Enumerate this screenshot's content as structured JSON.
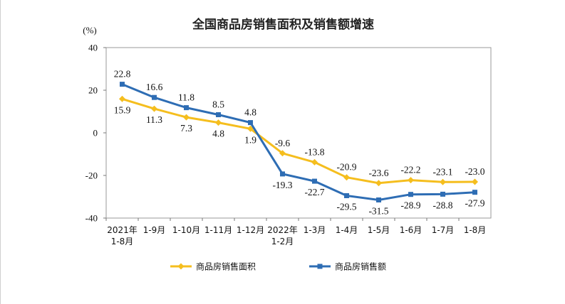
{
  "chart_data": {
    "type": "line",
    "title": "全国商品房销售面积及销售额增速",
    "ylabel": "(%)",
    "xlabel": "",
    "ylim": [
      -40,
      40
    ],
    "yticks": [
      40,
      20,
      0,
      -20,
      -40
    ],
    "categories": [
      "2021年\n1-8月",
      "1-9月",
      "1-10月",
      "1-11月",
      "1-12月",
      "2022年\n1-2月",
      "1-3月",
      "1-4月",
      "1-5月",
      "1-6月",
      "1-7月",
      "1-8月"
    ],
    "series": [
      {
        "name": "商品房销售面积",
        "color": "#F5BE1E",
        "marker": "diamond",
        "values": [
          15.9,
          11.3,
          7.3,
          4.8,
          1.9,
          -9.6,
          -13.8,
          -20.9,
          -23.6,
          -22.2,
          -23.1,
          -23.0
        ]
      },
      {
        "name": "商品房销售额",
        "color": "#2E6DB4",
        "marker": "square",
        "values": [
          22.8,
          16.6,
          11.8,
          8.5,
          4.8,
          -19.3,
          -22.7,
          -29.5,
          -31.5,
          -28.9,
          -28.8,
          -27.9
        ]
      }
    ],
    "grid": false,
    "legend": "bottom"
  }
}
